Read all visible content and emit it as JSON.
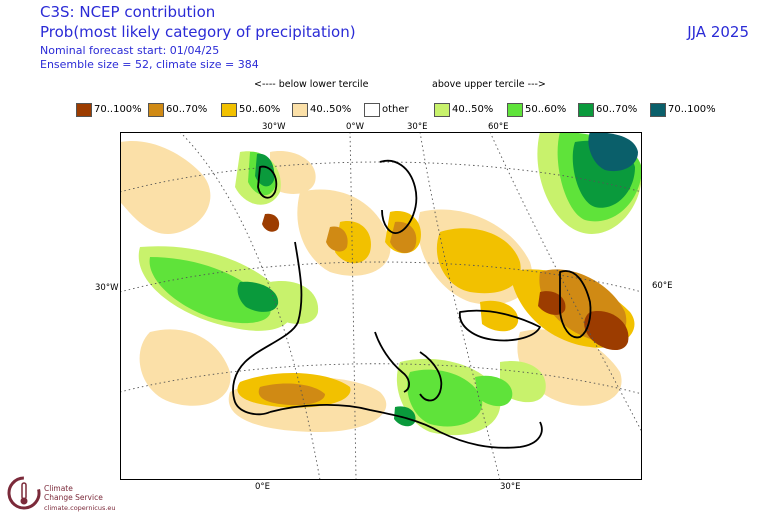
{
  "header": {
    "title_line1": "C3S: NCEP contribution",
    "title_line2": "Prob(most likely category of precipitation)",
    "forecast_start": "Nominal forecast start: 01/04/25",
    "ensemble": "Ensemble size = 52, climate size = 384",
    "season": "JJA 2025"
  },
  "legend": {
    "below_label": "<---- below lower tercile",
    "above_label": "above upper tercile --->",
    "items": [
      {
        "label": "70..100%",
        "color": "#9c3c00"
      },
      {
        "label": "60..70%",
        "color": "#d08a14"
      },
      {
        "label": "50..60%",
        "color": "#f2c100"
      },
      {
        "label": "40..50%",
        "color": "#fbe0a8"
      },
      {
        "label": "other",
        "color": "#ffffff"
      },
      {
        "label": "40..50%",
        "color": "#c8f26c"
      },
      {
        "label": "50..60%",
        "color": "#5fe33a"
      },
      {
        "label": "60..70%",
        "color": "#0a9a3c"
      },
      {
        "label": "70..100%",
        "color": "#0a5f6a"
      }
    ]
  },
  "axis_labels": {
    "top": [
      "30°W",
      "0°W",
      "30°E",
      "60°E"
    ],
    "bottom": [
      "0°E",
      "30°E"
    ],
    "left": "30°W",
    "right": "60°E"
  },
  "logo": {
    "line1": "Climate",
    "line2": "Change Service",
    "url": "climate.copernicus.eu"
  }
}
